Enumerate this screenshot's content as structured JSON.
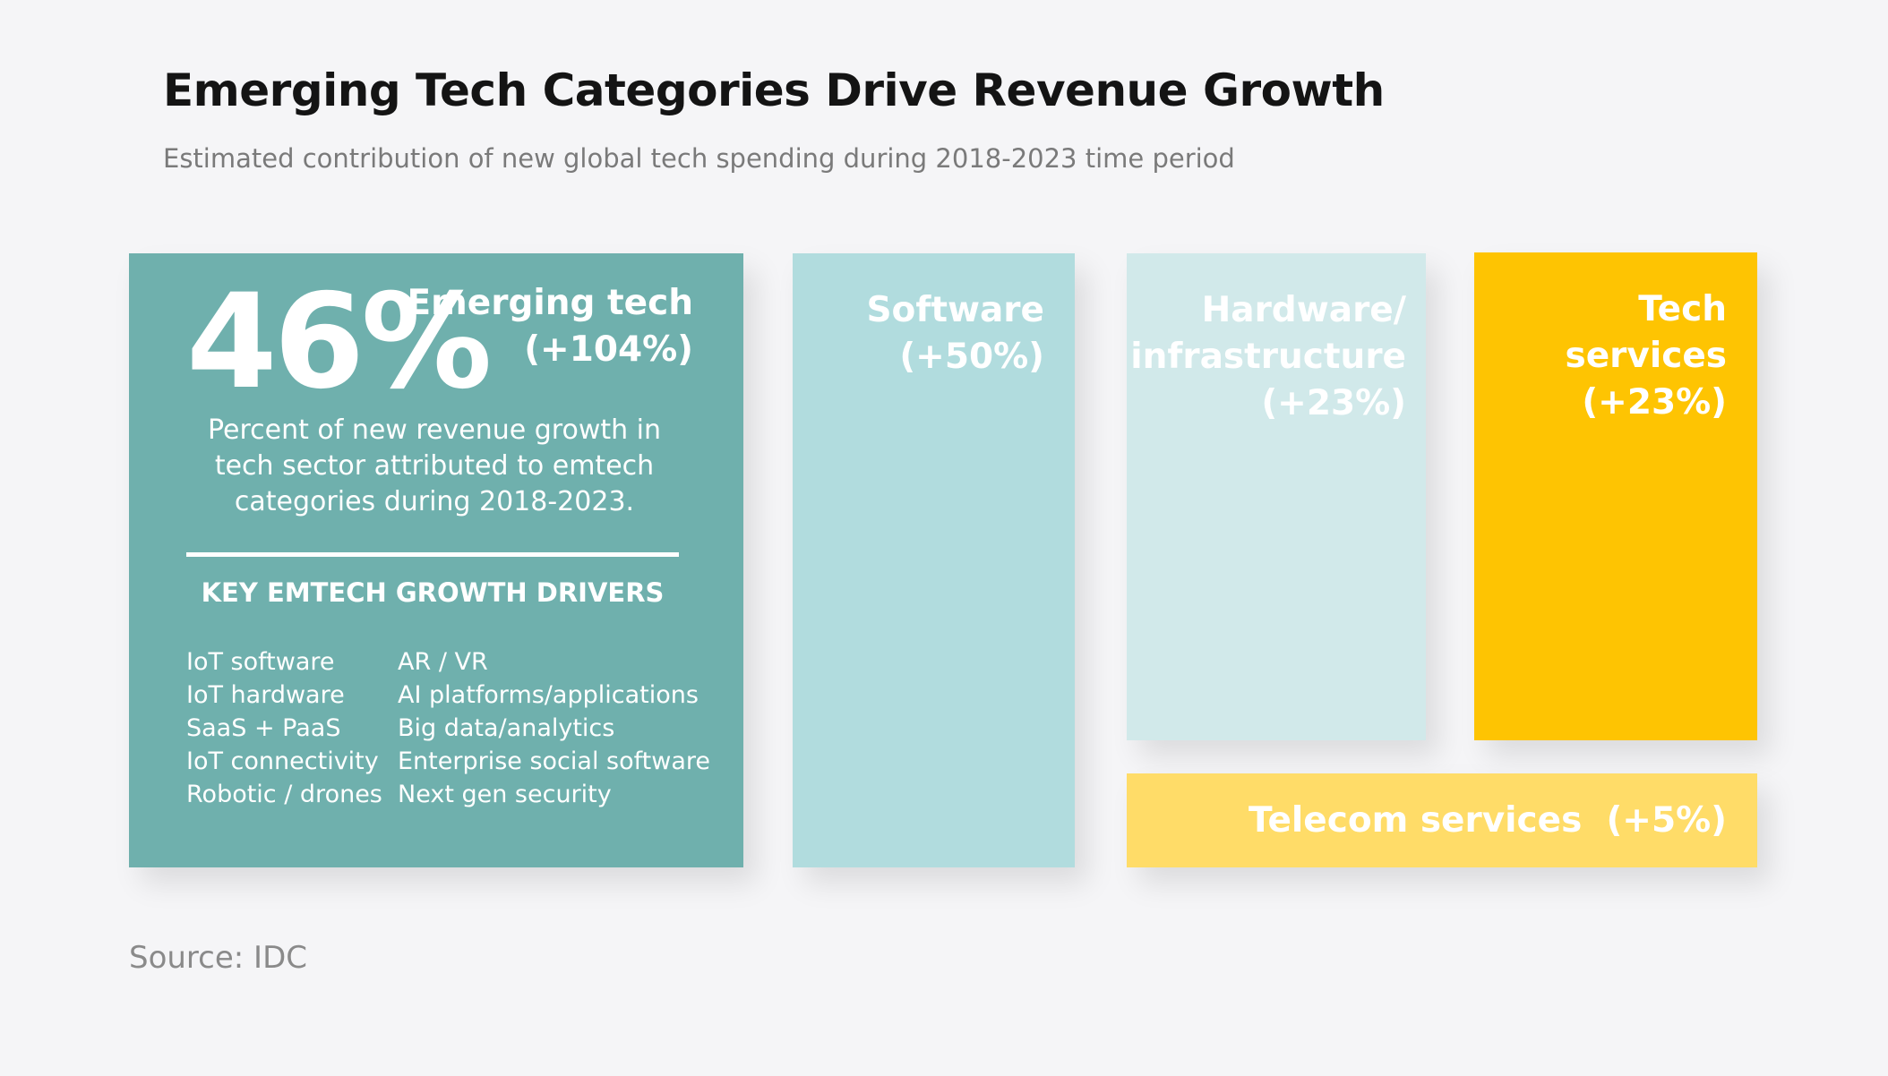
{
  "chart_data": {
    "type": "treemap",
    "title": "Emerging Tech Categories Drive Revenue Growth",
    "subtitle": "Estimated contribution of new global tech spending during 2018-2023 time period",
    "source": "Source: IDC",
    "highlight": {
      "value_label": "46%",
      "value": 46,
      "description": "Percent of new revenue growth in tech sector attributed to emtech categories during 2018-2023."
    },
    "categories": [
      {
        "name": "Emerging tech",
        "label_lines": [
          "Emerging tech",
          "(+104%)"
        ],
        "growth": 104,
        "color": "#6fb0ad"
      },
      {
        "name": "Software",
        "label_lines": [
          "Software",
          "(+50%)"
        ],
        "growth": 50,
        "color": "#b1dcde"
      },
      {
        "name": "Hardware/infrastructure",
        "label_lines": [
          "Hardware/",
          "infrastructure",
          "(+23%)"
        ],
        "growth": 23,
        "color": "#d1e9ea"
      },
      {
        "name": "Tech services",
        "label_lines": [
          "Tech services",
          "(+23%)"
        ],
        "growth": 23,
        "color": "#fec402"
      },
      {
        "name": "Telecom services",
        "label_lines": [
          "Telecom services  (+5%)"
        ],
        "growth": 5,
        "color": "#ffdc68"
      }
    ],
    "drivers": {
      "heading": "KEY EMTECH GROWTH DRIVERS",
      "column_1": [
        "IoT software",
        "IoT hardware",
        "SaaS + PaaS",
        "IoT connectivity",
        "Robotic / drones"
      ],
      "column_2": [
        "AR / VR",
        "AI platforms/applications",
        "Big data/analytics",
        "Enterprise social software",
        "Next gen security"
      ]
    }
  }
}
